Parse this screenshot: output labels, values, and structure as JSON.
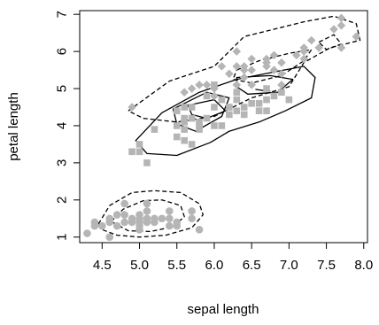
{
  "chart_data": {
    "type": "scatter",
    "title": "",
    "xlabel": "sepal length",
    "ylabel": "petal length",
    "xlim": [
      4.2,
      8.05
    ],
    "ylim": [
      0.85,
      7.1
    ],
    "xticks": [
      4.5,
      5.0,
      5.5,
      6.0,
      6.5,
      7.0,
      7.5,
      8.0
    ],
    "xtick_labels": [
      "4.5",
      "5.0",
      "5.5",
      "6.0",
      "6.5",
      "7.0",
      "7.5",
      "8.0"
    ],
    "yticks": [
      1,
      2,
      3,
      4,
      5,
      6,
      7
    ],
    "ytick_labels": [
      "1",
      "2",
      "3",
      "4",
      "5",
      "6",
      "7"
    ],
    "grid": false,
    "legend": "none",
    "marker_color": "#b5b5b5",
    "line_color": "#000000",
    "series": [
      {
        "marker": "circle",
        "points": [
          [
            4.3,
            1.1
          ],
          [
            4.4,
            1.3
          ],
          [
            4.4,
            1.4
          ],
          [
            4.5,
            1.3
          ],
          [
            4.6,
            1.0
          ],
          [
            4.6,
            1.4
          ],
          [
            4.6,
            1.5
          ],
          [
            4.7,
            1.3
          ],
          [
            4.7,
            1.6
          ],
          [
            4.8,
            1.4
          ],
          [
            4.8,
            1.6
          ],
          [
            4.8,
            1.9
          ],
          [
            4.9,
            1.4
          ],
          [
            4.9,
            1.5
          ],
          [
            5.0,
            1.2
          ],
          [
            5.0,
            1.3
          ],
          [
            5.0,
            1.4
          ],
          [
            5.0,
            1.5
          ],
          [
            5.0,
            1.6
          ],
          [
            5.1,
            1.4
          ],
          [
            5.1,
            1.5
          ],
          [
            5.1,
            1.7
          ],
          [
            5.1,
            1.9
          ],
          [
            5.2,
            1.4
          ],
          [
            5.2,
            1.5
          ],
          [
            5.3,
            1.5
          ],
          [
            5.4,
            1.3
          ],
          [
            5.4,
            1.5
          ],
          [
            5.4,
            1.7
          ],
          [
            5.5,
            1.3
          ],
          [
            5.5,
            1.4
          ],
          [
            5.7,
            1.5
          ],
          [
            5.7,
            1.7
          ],
          [
            5.8,
            1.2
          ]
        ]
      },
      {
        "marker": "square",
        "points": [
          [
            4.9,
            3.3
          ],
          [
            5.0,
            3.3
          ],
          [
            5.0,
            3.5
          ],
          [
            5.1,
            3.0
          ],
          [
            5.2,
            3.9
          ],
          [
            5.5,
            3.7
          ],
          [
            5.5,
            4.0
          ],
          [
            5.5,
            4.4
          ],
          [
            5.6,
            3.6
          ],
          [
            5.6,
            3.9
          ],
          [
            5.6,
            4.1
          ],
          [
            5.6,
            4.2
          ],
          [
            5.6,
            4.5
          ],
          [
            5.7,
            3.5
          ],
          [
            5.7,
            4.2
          ],
          [
            5.7,
            4.5
          ],
          [
            5.8,
            3.9
          ],
          [
            5.8,
            4.0
          ],
          [
            5.8,
            4.1
          ],
          [
            5.9,
            4.2
          ],
          [
            5.9,
            4.8
          ],
          [
            6.0,
            4.0
          ],
          [
            6.0,
            4.5
          ],
          [
            6.0,
            5.1
          ],
          [
            6.1,
            4.0
          ],
          [
            6.1,
            4.7
          ],
          [
            6.2,
            4.3
          ],
          [
            6.2,
            4.5
          ],
          [
            6.3,
            4.4
          ],
          [
            6.3,
            4.7
          ],
          [
            6.3,
            4.9
          ],
          [
            6.4,
            4.3
          ],
          [
            6.4,
            4.5
          ],
          [
            6.5,
            4.6
          ],
          [
            6.6,
            4.4
          ],
          [
            6.6,
            4.6
          ],
          [
            6.7,
            4.4
          ],
          [
            6.7,
            4.7
          ],
          [
            6.8,
            4.8
          ],
          [
            6.9,
            4.9
          ],
          [
            7.0,
            4.7
          ],
          [
            6.7,
            5.0
          ]
        ]
      },
      {
        "marker": "diamond",
        "points": [
          [
            4.9,
            4.5
          ],
          [
            5.6,
            4.9
          ],
          [
            5.7,
            5.0
          ],
          [
            5.8,
            5.1
          ],
          [
            5.9,
            5.1
          ],
          [
            6.0,
            4.8
          ],
          [
            6.0,
            5.0
          ],
          [
            6.1,
            5.6
          ],
          [
            6.2,
            5.4
          ],
          [
            6.3,
            5.1
          ],
          [
            6.3,
            5.6
          ],
          [
            6.3,
            6.0
          ],
          [
            6.4,
            5.3
          ],
          [
            6.4,
            5.5
          ],
          [
            6.4,
            5.6
          ],
          [
            6.5,
            5.1
          ],
          [
            6.5,
            5.5
          ],
          [
            6.5,
            5.8
          ],
          [
            6.7,
            5.6
          ],
          [
            6.7,
            5.7
          ],
          [
            6.7,
            5.8
          ],
          [
            6.8,
            5.5
          ],
          [
            6.8,
            5.9
          ],
          [
            6.9,
            5.4
          ],
          [
            6.9,
            5.7
          ],
          [
            6.9,
            5.1
          ],
          [
            7.1,
            5.9
          ],
          [
            7.2,
            5.8
          ],
          [
            7.2,
            6.0
          ],
          [
            7.2,
            6.1
          ],
          [
            7.3,
            6.3
          ],
          [
            7.4,
            6.1
          ],
          [
            7.6,
            6.6
          ],
          [
            7.7,
            6.1
          ],
          [
            7.7,
            6.7
          ],
          [
            7.7,
            6.9
          ],
          [
            7.9,
            6.4
          ]
        ]
      }
    ],
    "contours": [
      {
        "style": "dashed",
        "closed": true,
        "points": [
          [
            4.45,
            1.35
          ],
          [
            4.6,
            1.85
          ],
          [
            4.9,
            2.2
          ],
          [
            5.2,
            2.25
          ],
          [
            5.55,
            2.2
          ],
          [
            5.8,
            1.9
          ],
          [
            5.85,
            1.6
          ],
          [
            5.7,
            1.25
          ],
          [
            5.35,
            1.05
          ],
          [
            5.0,
            1.0
          ],
          [
            4.7,
            1.05
          ],
          [
            4.5,
            1.2
          ]
        ]
      },
      {
        "style": "dashed",
        "closed": true,
        "points": [
          [
            4.62,
            1.42
          ],
          [
            4.78,
            1.75
          ],
          [
            5.05,
            1.98
          ],
          [
            5.3,
            2.0
          ],
          [
            5.55,
            1.85
          ],
          [
            5.6,
            1.55
          ],
          [
            5.45,
            1.28
          ],
          [
            5.15,
            1.15
          ],
          [
            4.85,
            1.17
          ]
        ]
      },
      {
        "style": "dashed",
        "closed": true,
        "points": [
          [
            4.85,
            4.4
          ],
          [
            5.4,
            5.2
          ],
          [
            6.0,
            5.6
          ],
          [
            6.4,
            6.4
          ],
          [
            6.8,
            6.6
          ],
          [
            7.2,
            6.8
          ],
          [
            7.6,
            6.95
          ],
          [
            7.9,
            6.75
          ],
          [
            7.95,
            6.3
          ],
          [
            7.55,
            6.1
          ],
          [
            7.2,
            5.7
          ],
          [
            7.0,
            5.05
          ],
          [
            6.5,
            4.75
          ],
          [
            6.0,
            4.25
          ],
          [
            5.5,
            4.1
          ],
          [
            5.05,
            4.2
          ]
        ]
      },
      {
        "style": "dashed",
        "closed": true,
        "points": [
          [
            6.3,
            5.5
          ],
          [
            6.6,
            5.75
          ],
          [
            7.0,
            5.95
          ],
          [
            7.3,
            6.05
          ],
          [
            7.2,
            5.75
          ],
          [
            6.9,
            5.35
          ],
          [
            6.5,
            5.15
          ],
          [
            6.25,
            5.25
          ]
        ]
      },
      {
        "style": "dashed",
        "closed": true,
        "points": [
          [
            7.4,
            6.25
          ],
          [
            7.6,
            6.45
          ],
          [
            7.7,
            6.2
          ],
          [
            7.5,
            6.05
          ]
        ]
      },
      {
        "style": "solid",
        "closed": true,
        "points": [
          [
            4.95,
            3.6
          ],
          [
            5.3,
            4.35
          ],
          [
            5.8,
            4.9
          ],
          [
            6.3,
            5.25
          ],
          [
            6.8,
            5.45
          ],
          [
            7.2,
            5.6
          ],
          [
            7.35,
            5.3
          ],
          [
            7.3,
            4.75
          ],
          [
            6.95,
            4.4
          ],
          [
            6.6,
            4.1
          ],
          [
            6.2,
            3.85
          ],
          [
            5.95,
            3.55
          ],
          [
            5.5,
            3.2
          ],
          [
            5.1,
            3.25
          ]
        ]
      },
      {
        "style": "solid",
        "closed": true,
        "points": [
          [
            5.45,
            4.45
          ],
          [
            5.9,
            4.9
          ],
          [
            6.2,
            4.75
          ],
          [
            6.1,
            4.25
          ],
          [
            5.75,
            3.85
          ],
          [
            5.5,
            4.05
          ]
        ]
      },
      {
        "style": "solid",
        "closed": true,
        "points": [
          [
            5.65,
            4.55
          ],
          [
            6.0,
            4.7
          ],
          [
            6.15,
            4.4
          ],
          [
            5.9,
            4.2
          ],
          [
            5.7,
            4.3
          ]
        ]
      },
      {
        "style": "solid",
        "closed": true,
        "points": [
          [
            6.3,
            5.3
          ],
          [
            6.75,
            5.35
          ],
          [
            7.05,
            5.25
          ],
          [
            6.85,
            4.9
          ],
          [
            6.45,
            4.85
          ],
          [
            6.3,
            5.05
          ]
        ]
      },
      {
        "style": "solid",
        "closed": false,
        "points": [
          [
            6.55,
            4.98
          ],
          [
            6.65,
            4.95
          ],
          [
            6.75,
            4.93
          ]
        ]
      }
    ]
  }
}
